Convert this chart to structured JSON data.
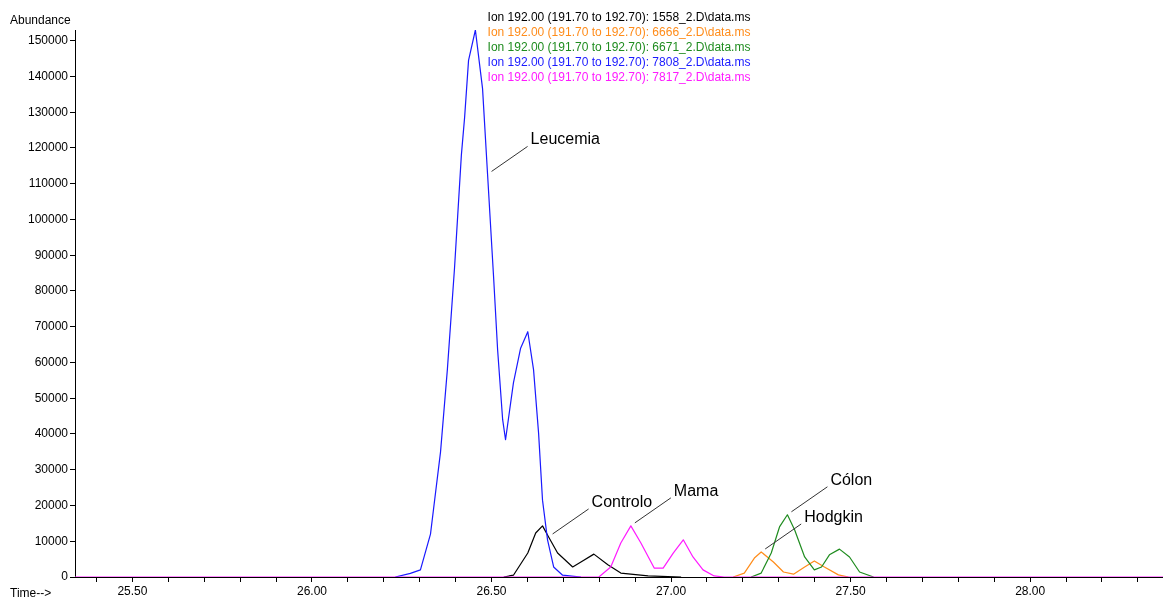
{
  "chart_data": {
    "type": "line",
    "xlabel": "Time-->",
    "ylabel": "Abundance",
    "legend": "top",
    "marker": "none",
    "line_style": "solid",
    "xlim": [
      25.34,
      28.37
    ],
    "ylim": [
      0,
      153000
    ],
    "xticks": [
      {
        "value": 25.4,
        "label": null
      },
      {
        "value": 25.5,
        "label": "25.50"
      },
      {
        "value": 25.6,
        "label": null
      },
      {
        "value": 25.7,
        "label": null
      },
      {
        "value": 25.8,
        "label": null
      },
      {
        "value": 25.9,
        "label": null
      },
      {
        "value": 26.0,
        "label": "26.00"
      },
      {
        "value": 26.1,
        "label": null
      },
      {
        "value": 26.2,
        "label": null
      },
      {
        "value": 26.3,
        "label": null
      },
      {
        "value": 26.4,
        "label": null
      },
      {
        "value": 26.5,
        "label": "26.50"
      },
      {
        "value": 26.6,
        "label": null
      },
      {
        "value": 26.7,
        "label": null
      },
      {
        "value": 26.8,
        "label": null
      },
      {
        "value": 26.9,
        "label": null
      },
      {
        "value": 27.0,
        "label": "27.00"
      },
      {
        "value": 27.1,
        "label": null
      },
      {
        "value": 27.2,
        "label": null
      },
      {
        "value": 27.3,
        "label": null
      },
      {
        "value": 27.4,
        "label": null
      },
      {
        "value": 27.5,
        "label": "27.50"
      },
      {
        "value": 27.6,
        "label": null
      },
      {
        "value": 27.7,
        "label": null
      },
      {
        "value": 27.8,
        "label": null
      },
      {
        "value": 27.9,
        "label": null
      },
      {
        "value": 28.0,
        "label": "28.00"
      },
      {
        "value": 28.1,
        "label": null
      },
      {
        "value": 28.2,
        "label": null
      },
      {
        "value": 28.3,
        "label": null
      }
    ],
    "yticks": [
      0,
      10000,
      20000,
      30000,
      40000,
      50000,
      60000,
      70000,
      80000,
      90000,
      100000,
      110000,
      120000,
      130000,
      140000,
      150000
    ],
    "grid": false,
    "series": [
      {
        "name": "Ion 192.00 (191.70 to 192.70): 1558_2.D\\data.ms",
        "color": "#000000",
        "x": [
          26.534,
          26.561,
          26.601,
          26.623,
          26.642,
          26.659,
          26.684,
          26.726,
          26.749,
          26.785,
          26.824,
          26.86,
          26.936,
          27.028
        ],
        "values": [
          0,
          500,
          6700,
          12300,
          14300,
          11200,
          6700,
          2800,
          4200,
          6400,
          3400,
          1100,
          300,
          0
        ]
      },
      {
        "name": "Ion 192.00 (191.70 to 192.70): 6666_2.D\\data.ms",
        "color": "#ff8c1a",
        "x": [
          27.173,
          27.204,
          27.232,
          27.251,
          27.285,
          27.313,
          27.341,
          27.372,
          27.399,
          27.427,
          27.466,
          27.494
        ],
        "values": [
          0,
          1100,
          5300,
          7000,
          4200,
          1400,
          800,
          2800,
          4500,
          2800,
          600,
          0
        ]
      },
      {
        "name": "Ion 192.00 (191.70 to 192.70): 6671_2.D\\data.ms",
        "color": "#1f8c1f",
        "x": [
          27.223,
          27.251,
          27.279,
          27.302,
          27.324,
          27.344,
          27.372,
          27.399,
          27.419,
          27.441,
          27.469,
          27.497,
          27.525,
          27.564
        ],
        "values": [
          0,
          1100,
          6700,
          14000,
          17400,
          13200,
          5600,
          2000,
          2800,
          6200,
          7800,
          5600,
          1400,
          0
        ]
      },
      {
        "name": "Ion 192.00 (191.70 to 192.70): 7808_2.D\\data.ms",
        "color": "#1a1aff",
        "x": [
          26.232,
          26.274,
          26.302,
          26.33,
          26.358,
          26.377,
          26.397,
          26.416,
          26.425,
          26.436,
          26.455,
          26.475,
          26.489,
          26.506,
          26.517,
          26.531,
          26.539,
          26.561,
          26.581,
          26.601,
          26.617,
          26.631,
          26.642,
          26.656,
          26.673,
          26.698,
          26.749
        ],
        "values": [
          0,
          1000,
          2000,
          12000,
          35000,
          58000,
          86500,
          118000,
          128500,
          144500,
          153000,
          136600,
          112600,
          83400,
          63500,
          44000,
          38400,
          54300,
          64000,
          68600,
          58000,
          40300,
          21500,
          10400,
          2800,
          500,
          0
        ]
      },
      {
        "name": "Ion 192.00 (191.70 to 192.70): 7817_2.D\\data.ms",
        "color": "#ff1aff",
        "x": [
          25.34,
          26.799,
          26.832,
          26.86,
          26.888,
          26.916,
          26.953,
          26.978,
          27.006,
          27.034,
          27.061,
          27.089,
          27.12,
          27.148,
          28.37
        ],
        "values": [
          0,
          0,
          2800,
          9500,
          14300,
          9500,
          2500,
          2500,
          6700,
          10400,
          5600,
          2000,
          300,
          0,
          0
        ]
      }
    ],
    "annotations": [
      {
        "text": "Leucemia",
        "x": 26.489,
        "y": 112600
      },
      {
        "text": "Controlo",
        "x": 26.659,
        "y": 11200
      },
      {
        "text": "Mama",
        "x": 26.888,
        "y": 14300
      },
      {
        "text": "Hodgkin",
        "x": 27.251,
        "y": 7000
      },
      {
        "text": "Cólon",
        "x": 27.324,
        "y": 17400
      }
    ]
  }
}
